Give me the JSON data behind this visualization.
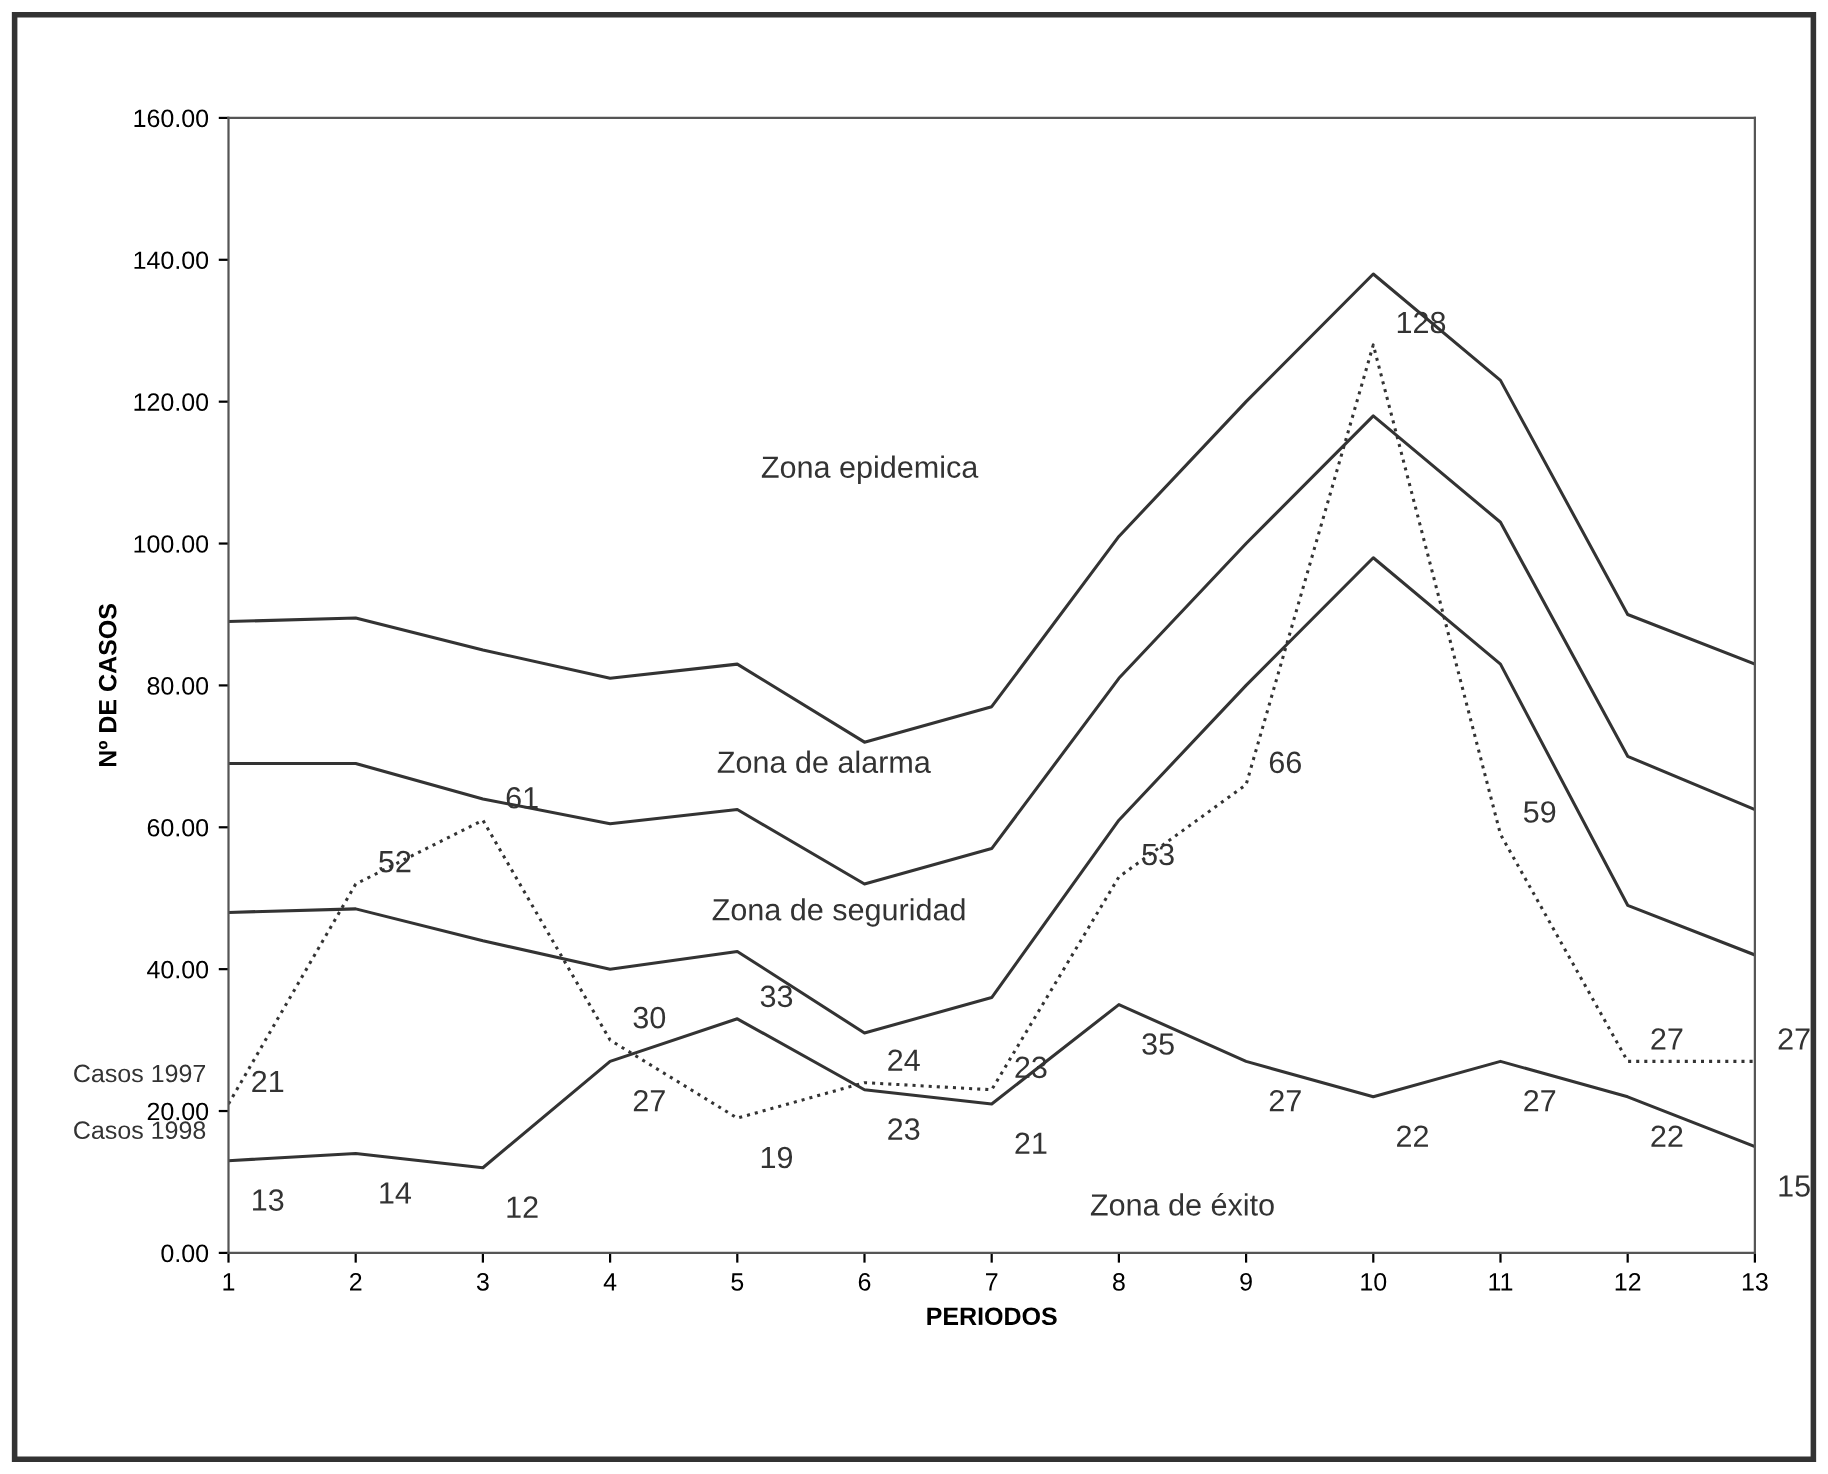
{
  "chart_data": {
    "type": "line",
    "xlabel": "PERIODOS",
    "ylabel": "Nº DE CASOS",
    "x": [
      1,
      2,
      3,
      4,
      5,
      6,
      7,
      8,
      9,
      10,
      11,
      12,
      13
    ],
    "series": [
      {
        "color": "#333333",
        "line_style": "solid",
        "values": [
          89,
          89.5,
          85,
          81,
          83,
          72,
          77,
          101,
          120,
          138,
          123,
          90,
          83
        ]
      },
      {
        "color": "#333333",
        "line_style": "solid",
        "values": [
          69,
          69,
          64,
          60.5,
          62.5,
          52,
          57,
          81,
          100,
          118,
          103,
          70,
          62.5
        ]
      },
      {
        "color": "#333333",
        "line_style": "solid",
        "values": [
          48,
          48.5,
          44,
          40,
          42.5,
          31,
          36,
          61,
          80,
          98,
          83,
          49,
          42
        ]
      },
      {
        "name": "Casos 1997",
        "color": "#333333",
        "line_style": "dotted",
        "values": [
          21,
          52,
          61,
          30,
          19,
          24,
          23,
          53,
          66,
          128,
          59,
          27,
          27
        ],
        "value_labels": [
          "21",
          "52",
          "61",
          "30",
          "19",
          "24",
          "23",
          "53",
          "66",
          "128",
          "59",
          "27",
          "27"
        ]
      },
      {
        "name": "Casos 1998",
        "color": "#333333",
        "line_style": "solid",
        "values": [
          13,
          14,
          12,
          27,
          33,
          23,
          21,
          35,
          27,
          22,
          27,
          22,
          15
        ],
        "value_labels": [
          "13",
          "14",
          "12",
          "27",
          "33",
          "23",
          "21",
          "35",
          "27",
          "22",
          "27",
          "22",
          "15"
        ]
      }
    ],
    "annotations": [
      "Zona epidemica",
      "Zona de alarma",
      "Zona de seguridad",
      "Zona de éxito"
    ],
    "xlim": [
      1,
      13
    ],
    "ylim": [
      0,
      160
    ],
    "xticks": [
      1,
      2,
      3,
      4,
      5,
      6,
      7,
      8,
      9,
      10,
      11,
      12,
      13
    ],
    "yticks": [
      {
        "value": 0,
        "label": "0.00"
      },
      {
        "value": 20,
        "label": "20.00"
      },
      {
        "value": 40,
        "label": "40.00"
      },
      {
        "value": 60,
        "label": "60.00"
      },
      {
        "value": 80,
        "label": "80.00"
      },
      {
        "value": 100,
        "label": "100.00"
      },
      {
        "value": 120,
        "label": "120.00"
      },
      {
        "value": 140,
        "label": "140.00"
      },
      {
        "value": 160,
        "label": "160.00"
      }
    ],
    "grid": false,
    "legend": false,
    "marker": "none"
  }
}
